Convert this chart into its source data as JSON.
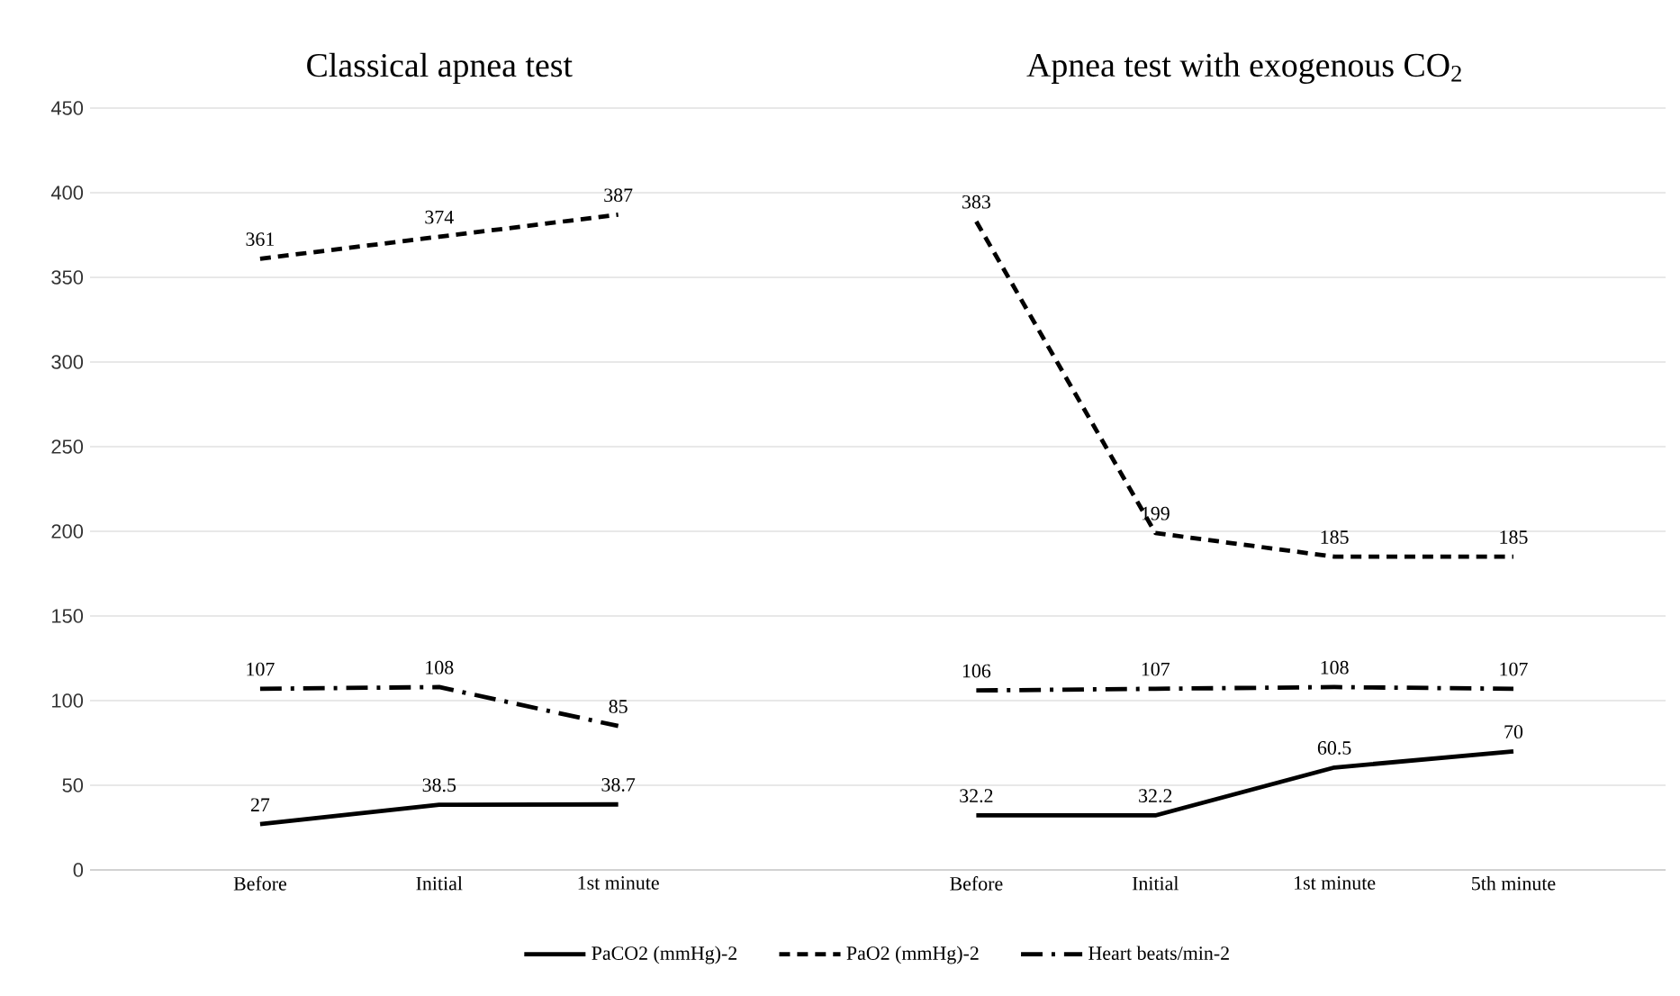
{
  "chart_data": {
    "type": "line",
    "annotations": [
      "Classical apnea test",
      "Apnea test with exogenous CO$_{2}$"
    ],
    "categories": [
      "Before",
      "Initial",
      "1st minute",
      null,
      "Before",
      "Initial",
      "1st minute",
      "5th minute"
    ],
    "series": [
      {
        "name": "PaCO2 (mmHg)-2",
        "color": "#000000",
        "line_style": "solid",
        "values": [
          27,
          38.5,
          38.7,
          null,
          32.2,
          32.2,
          60.5,
          70
        ]
      },
      {
        "name": "PaO2 (mmHg)-2",
        "color": "#000000",
        "line_style": "dashed",
        "values": [
          361,
          374,
          387,
          null,
          383,
          199,
          185,
          185
        ]
      },
      {
        "name": "Heart beats/min-2",
        "color": "#000000",
        "line_style": "dashdot",
        "values": [
          107,
          108,
          85,
          null,
          106,
          107,
          108,
          107
        ]
      }
    ],
    "ylim": [
      0,
      450
    ],
    "yticks": [
      0,
      50,
      100,
      150,
      200,
      250,
      300,
      350,
      400,
      450
    ],
    "grid": "y",
    "legend": "bottom",
    "data_labels": true,
    "marker": "none"
  }
}
